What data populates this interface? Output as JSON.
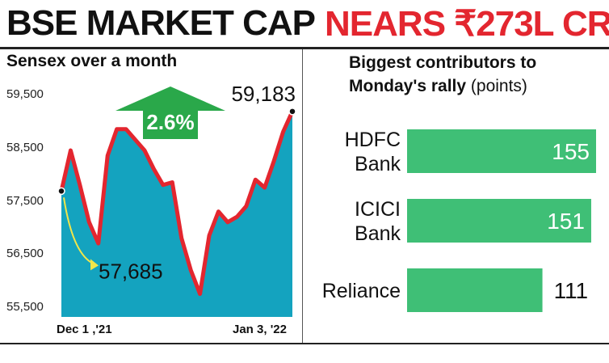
{
  "headline": {
    "part1": "BSE MARKET CAP",
    "part2": "NEARS ₹273L CR"
  },
  "chart_data": [
    {
      "type": "area",
      "title": "Sensex over a month",
      "ylim": [
        55300,
        59800
      ],
      "yticks": [
        "59,500",
        "58,500",
        "57,500",
        "56,500",
        "55,500"
      ],
      "ytick_values": [
        59500,
        58500,
        57500,
        56500,
        55500
      ],
      "x_start_label": "Dec 1 ,'21",
      "x_end_label": "Jan 3, '22",
      "values": [
        57685,
        58450,
        57800,
        57100,
        56700,
        58350,
        58850,
        58850,
        58650,
        58450,
        58100,
        57800,
        57850,
        56800,
        56200,
        55750,
        56850,
        57300,
        57100,
        57200,
        57400,
        57900,
        57750,
        58250,
        58800,
        59183
      ],
      "annotations": {
        "start_value": "57,685",
        "end_value": "59,183",
        "change": "2.6%"
      },
      "colors": {
        "area": "#14a3bf",
        "line": "#e3262f",
        "arrow": "#2aa84a"
      }
    },
    {
      "type": "bar",
      "title_line1": "Biggest contributors to",
      "title_line2": "Monday's rally",
      "title_unit": "(points)",
      "categories": [
        [
          "HDFC",
          "Bank"
        ],
        [
          "ICICI",
          "Bank"
        ],
        [
          "Reliance"
        ]
      ],
      "values": [
        155,
        151,
        111
      ],
      "value_labels": [
        "155",
        "151",
        "111"
      ],
      "xlim": [
        0,
        155
      ],
      "colors": {
        "bar": "#3fbf76"
      }
    }
  ]
}
